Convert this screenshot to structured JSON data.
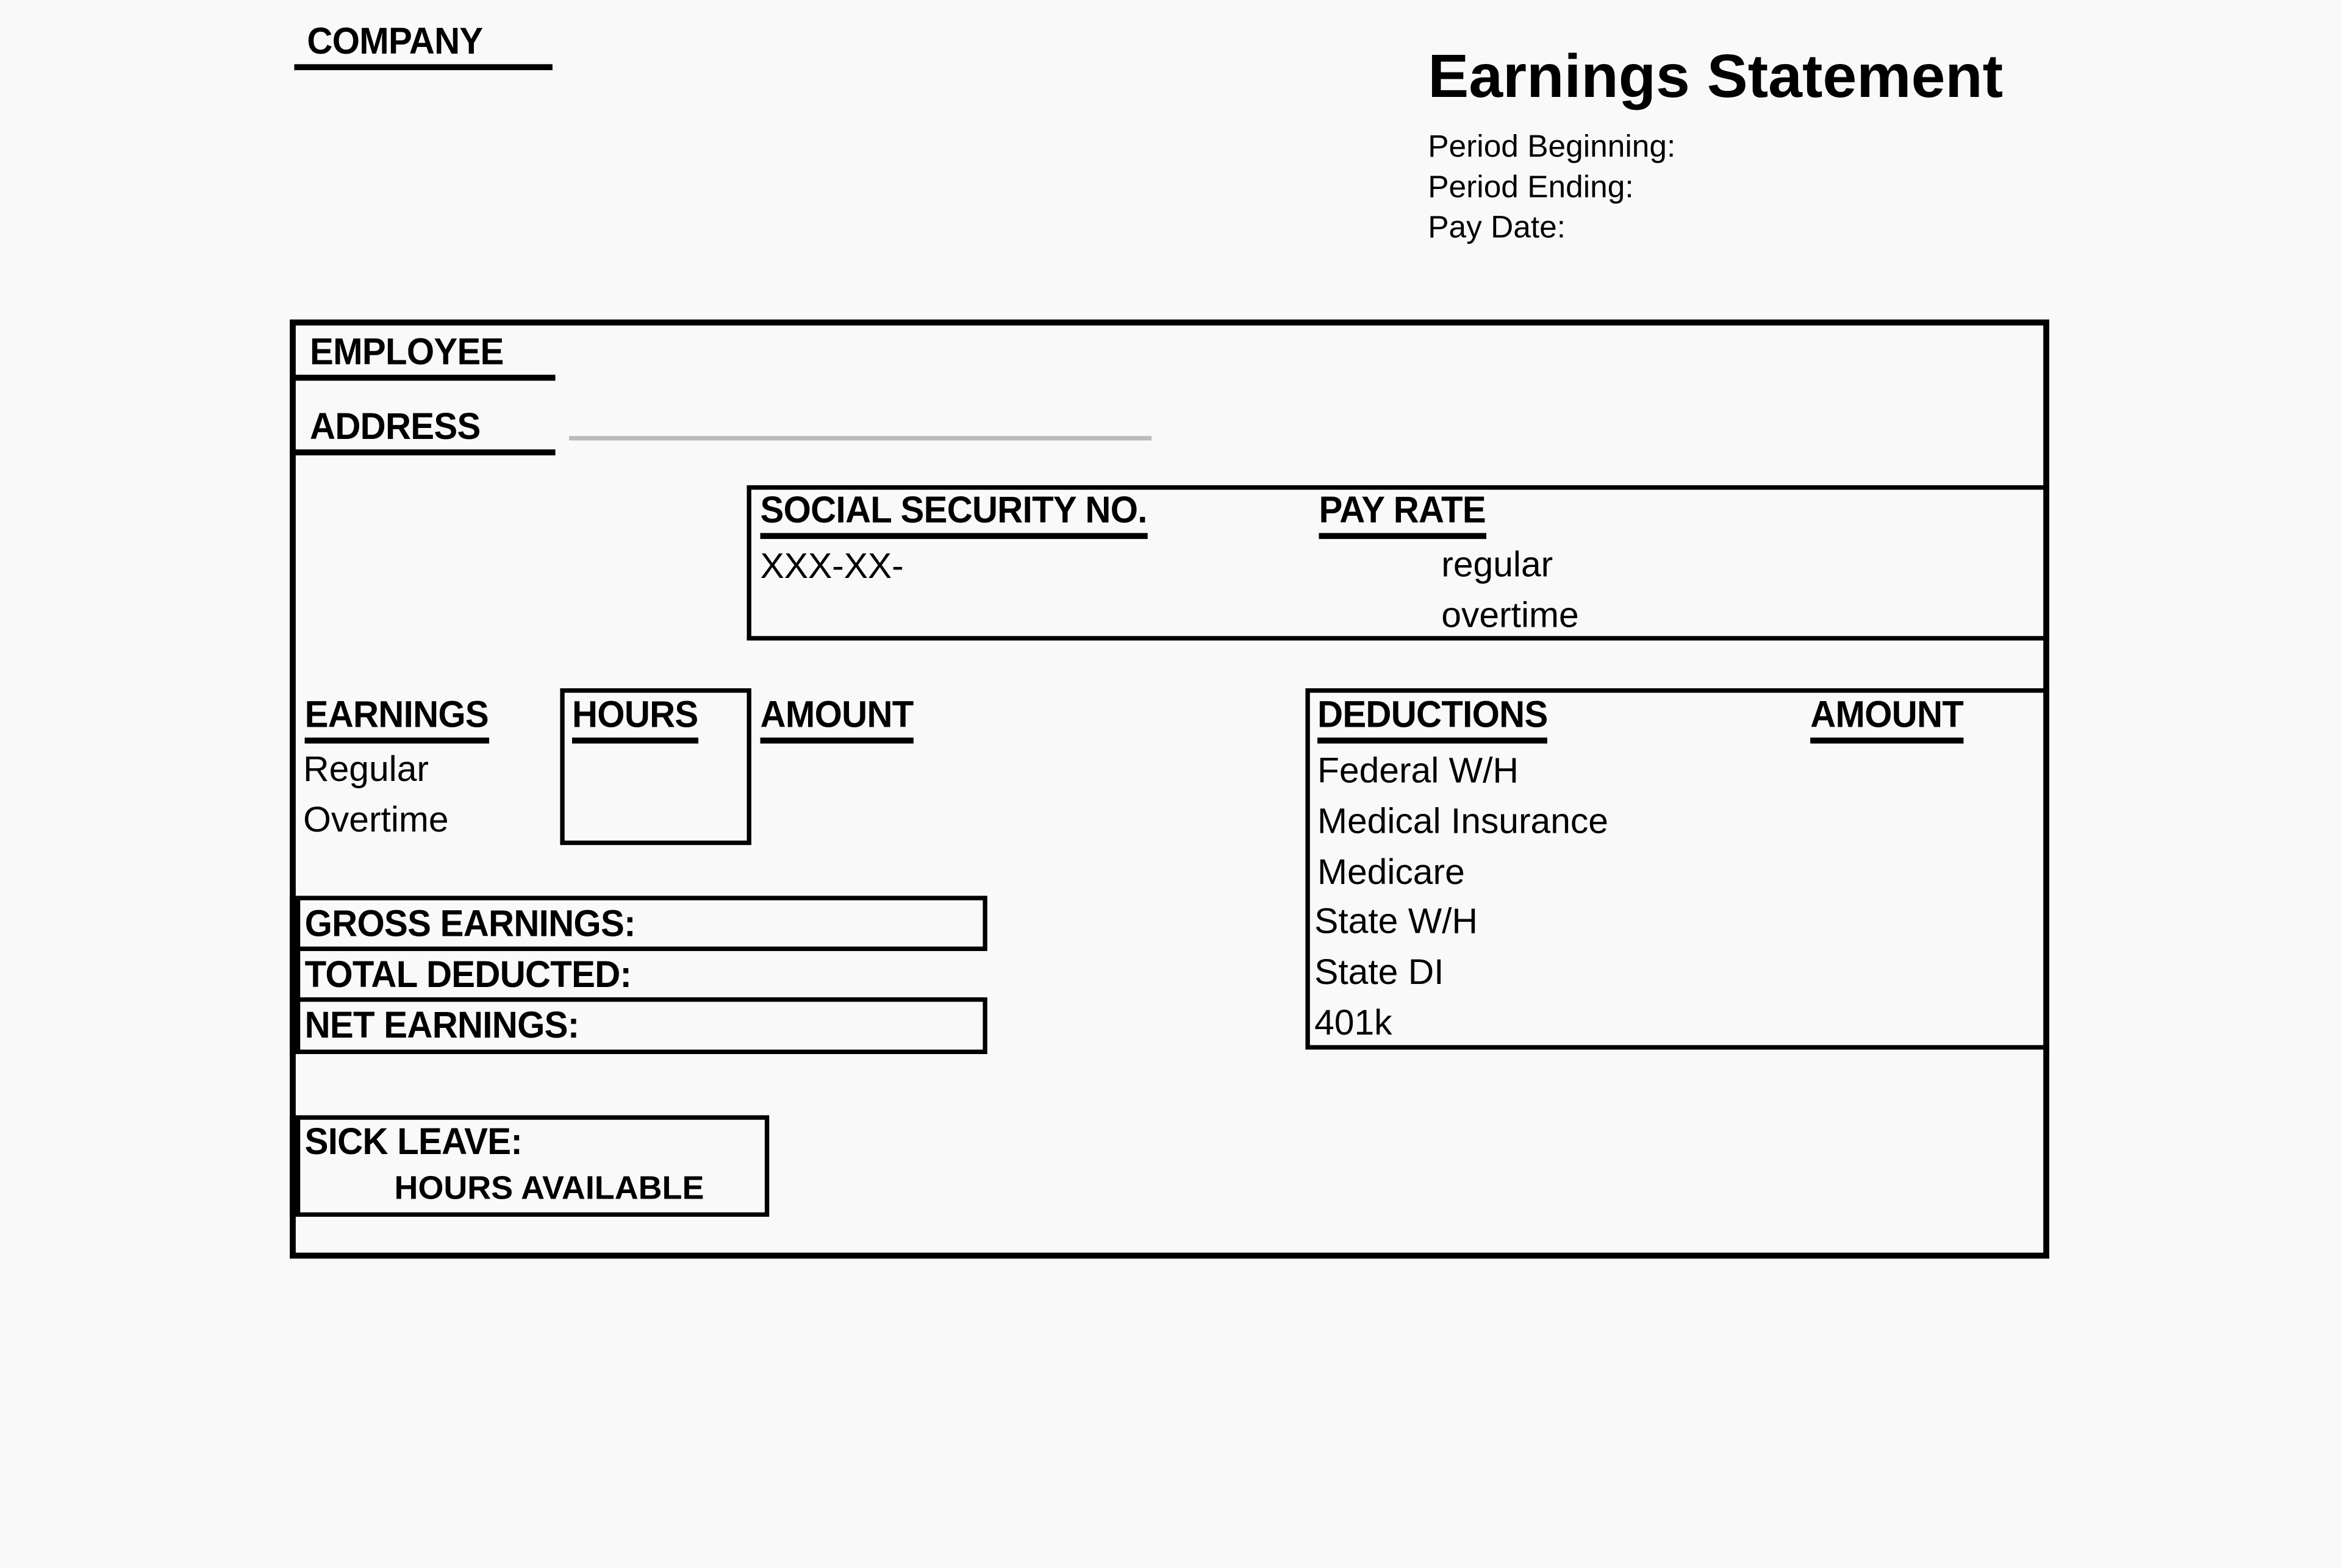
{
  "company_label": "COMPANY",
  "title": "Earnings Statement",
  "period": {
    "beginning_label": "Period Beginning:",
    "ending_label": "Period Ending:",
    "pay_date_label": "Pay Date:"
  },
  "employee": {
    "employee_label": "EMPLOYEE",
    "address_label": "ADDRESS"
  },
  "ssn": {
    "label": "SOCIAL SECURITY NO.",
    "value": "XXX-XX-"
  },
  "pay_rate": {
    "label": "PAY RATE",
    "regular_label": "regular",
    "overtime_label": "overtime"
  },
  "earnings": {
    "label": "EARNINGS",
    "hours_label": "HOURS",
    "amount_label": "AMOUNT",
    "rows": [
      "Regular",
      "Overtime"
    ]
  },
  "totals": {
    "gross": "GROSS EARNINGS:",
    "deducted": "TOTAL DEDUCTED:",
    "net": "NET EARNINGS:"
  },
  "sick_leave": {
    "label": "SICK LEAVE:",
    "hours_available": "HOURS AVAILABLE"
  },
  "deductions": {
    "label": "DEDUCTIONS",
    "amount_label": "AMOUNT",
    "rows": [
      "Federal W/H",
      "Medical Insurance",
      "Medicare",
      "State W/H",
      "State DI",
      "401k"
    ]
  }
}
